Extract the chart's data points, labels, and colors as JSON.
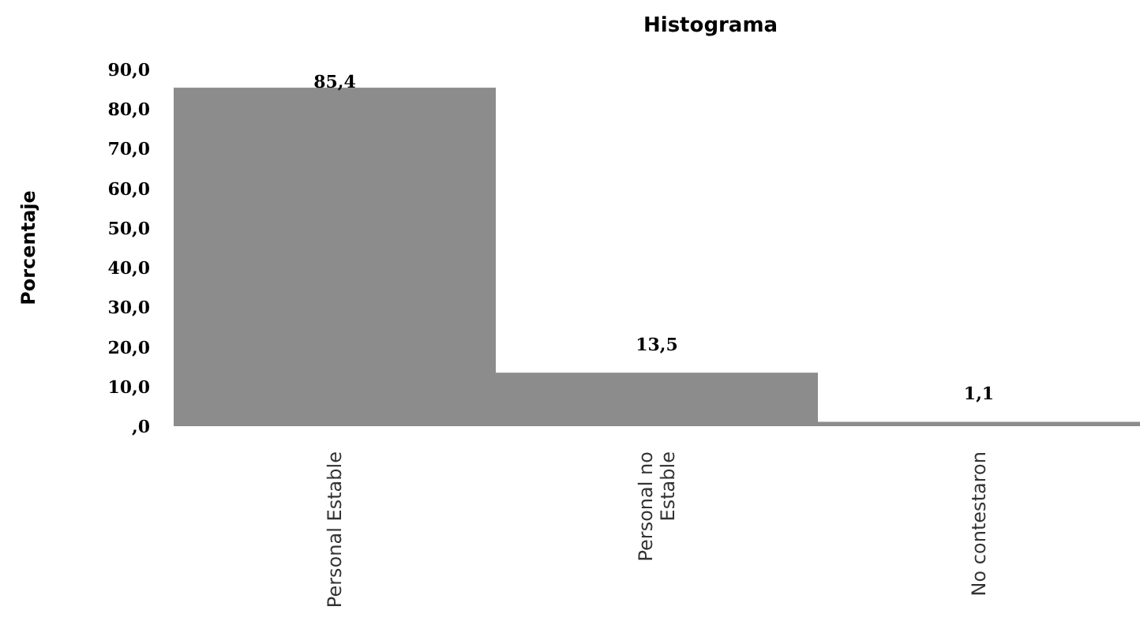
{
  "chart_data": {
    "type": "bar",
    "title": "Histograma",
    "ylabel": "Porcentaje",
    "categories": [
      "Personal Estable",
      "Personal no Estable",
      "No contestaron"
    ],
    "values": [
      85.4,
      13.5,
      1.1
    ],
    "color": "#8c8c8c",
    "value_labels": [
      "85,4",
      "13,5",
      "1,1"
    ],
    "ylim": [
      0,
      90
    ],
    "yticks": [
      {
        "value": 0,
        "label": ",0"
      },
      {
        "value": 10,
        "label": "10,0"
      },
      {
        "value": 20,
        "label": "20,0"
      },
      {
        "value": 30,
        "label": "30,0"
      },
      {
        "value": 40,
        "label": "40,0"
      },
      {
        "value": 50,
        "label": "50,0"
      },
      {
        "value": 60,
        "label": "60,0"
      },
      {
        "value": 70,
        "label": "70,0"
      },
      {
        "value": 80,
        "label": "80,0"
      },
      {
        "value": 90,
        "label": "90,0"
      }
    ],
    "grid": false
  }
}
